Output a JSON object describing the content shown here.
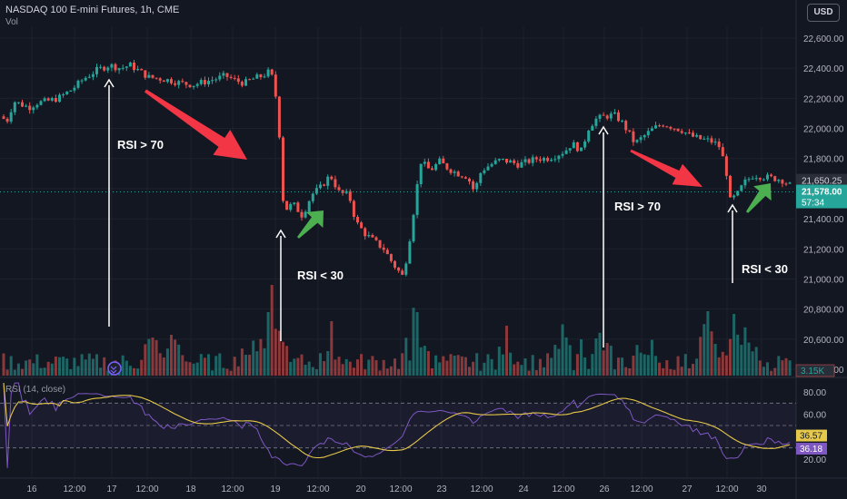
{
  "header": {
    "title": "NASDAQ 100 E-mini Futures, 1h, CME",
    "subtitle": "Vol",
    "currency": "USD",
    "rsi_title": "RSI (14, close)"
  },
  "colors": {
    "up": "#26a69a",
    "down": "#ef5350",
    "background": "#131722",
    "grid": "#1e222d",
    "rsi_line": "#7e57c2",
    "rsi_ma": "#e6c84a",
    "arrow_red": "#f23645",
    "arrow_green": "#4caf50"
  },
  "chart_data": [
    {
      "type": "candlestick",
      "title": "NASDAQ 100 E-mini Futures, 1h, CME",
      "ylim": [
        20300,
        22700
      ],
      "y_ticks": [
        "22,600.00",
        "22,400.00",
        "22,200.00",
        "22,000.00",
        "21,800.00",
        "21,600.00",
        "21,400.00",
        "21,200.00",
        "21,000.00",
        "20,800.00",
        "20,600.00",
        "20,400.00"
      ],
      "x_ticks": [
        "16",
        "12:00",
        "17",
        "12:00",
        "18",
        "12:00",
        "19",
        "12:00",
        "20",
        "12:00",
        "23",
        "12:00",
        "24",
        "12:00",
        "26",
        "12:00",
        "27",
        "12:00",
        "30"
      ],
      "last_price": "21,578.00",
      "countdown": "57:34",
      "prev_close": "21,650.25",
      "volume_last": "3.15K",
      "close_path": [
        [
          0,
          22080
        ],
        [
          6,
          22050
        ],
        [
          12,
          22180
        ],
        [
          18,
          22160
        ],
        [
          25,
          22140
        ],
        [
          32,
          22170
        ],
        [
          40,
          22180
        ],
        [
          50,
          22200
        ],
        [
          62,
          22260
        ],
        [
          72,
          22330
        ],
        [
          84,
          22390
        ],
        [
          94,
          22420
        ],
        [
          104,
          22400
        ],
        [
          112,
          22420
        ],
        [
          120,
          22380
        ],
        [
          128,
          22340
        ],
        [
          138,
          22330
        ],
        [
          146,
          22320
        ],
        [
          156,
          22300
        ],
        [
          166,
          22290
        ],
        [
          176,
          22310
        ],
        [
          186,
          22330
        ],
        [
          194,
          22350
        ],
        [
          202,
          22320
        ],
        [
          210,
          22300
        ],
        [
          218,
          22330
        ],
        [
          226,
          22350
        ],
        [
          232,
          22380
        ],
        [
          236,
          22300
        ],
        [
          241,
          21900
        ],
        [
          244,
          21450
        ],
        [
          252,
          21500
        ],
        [
          260,
          21420
        ],
        [
          268,
          21560
        ],
        [
          276,
          21610
        ],
        [
          284,
          21690
        ],
        [
          292,
          21570
        ],
        [
          300,
          21560
        ],
        [
          306,
          21380
        ],
        [
          314,
          21300
        ],
        [
          322,
          21250
        ],
        [
          330,
          21200
        ],
        [
          338,
          21100
        ],
        [
          346,
          21020
        ],
        [
          350,
          21150
        ],
        [
          354,
          21350
        ],
        [
          358,
          21580
        ],
        [
          362,
          21780
        ],
        [
          370,
          21720
        ],
        [
          378,
          21780
        ],
        [
          386,
          21730
        ],
        [
          394,
          21700
        ],
        [
          402,
          21680
        ],
        [
          408,
          21580
        ],
        [
          414,
          21720
        ],
        [
          422,
          21760
        ],
        [
          430,
          21790
        ],
        [
          438,
          21780
        ],
        [
          446,
          21760
        ],
        [
          454,
          21780
        ],
        [
          462,
          21800
        ],
        [
          470,
          21800
        ],
        [
          478,
          21820
        ],
        [
          486,
          21850
        ],
        [
          492,
          21900
        ],
        [
          500,
          21850
        ],
        [
          506,
          22000
        ],
        [
          512,
          22060
        ],
        [
          520,
          22080
        ],
        [
          528,
          22090
        ],
        [
          534,
          22050
        ],
        [
          540,
          21980
        ],
        [
          546,
          21900
        ],
        [
          554,
          21950
        ],
        [
          562,
          22000
        ],
        [
          570,
          22030
        ],
        [
          578,
          22010
        ],
        [
          586,
          21990
        ],
        [
          594,
          21950
        ],
        [
          602,
          21930
        ],
        [
          610,
          21920
        ],
        [
          618,
          21890
        ],
        [
          624,
          21750
        ],
        [
          628,
          21520
        ],
        [
          634,
          21560
        ],
        [
          640,
          21640
        ],
        [
          648,
          21690
        ],
        [
          656,
          21680
        ],
        [
          664,
          21670
        ],
        [
          672,
          21660
        ],
        [
          680,
          21620
        ]
      ],
      "pre_chart_anchor": [
        [
          0,
          22080
        ]
      ]
    },
    {
      "type": "line",
      "title": "RSI (14, close)",
      "ylim": [
        10,
        90
      ],
      "y_ticks": [
        "80.00",
        "60.00",
        "20.00"
      ],
      "levels": [
        70,
        50,
        30
      ],
      "rsi_value": "36.57",
      "rsi_ma_value": "36.18"
    }
  ],
  "annotations": {
    "rsi_gt_70_a": "RSI > 70",
    "rsi_lt_30_a": "RSI < 30",
    "rsi_gt_70_b": "RSI > 70",
    "rsi_lt_30_b": "RSI < 30"
  }
}
